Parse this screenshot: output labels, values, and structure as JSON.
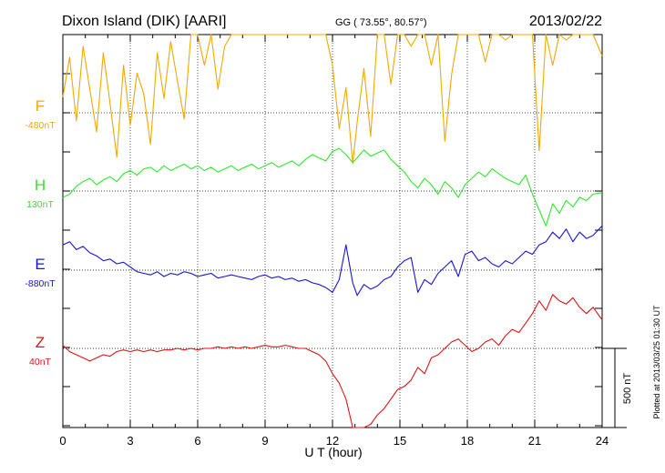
{
  "header": {
    "station": "Dixon Island (DIK)  [AARI]",
    "coords": "GG ( 73.55°,  80.57°)",
    "date": "2013/02/22"
  },
  "side_note": "Plotted at 2013/03/25 01:30 UT",
  "scale_label": "500 nT",
  "chart_data": {
    "type": "line",
    "xlabel": "U T (hour)",
    "xlim": [
      0,
      24
    ],
    "x_ticks": [
      0,
      3,
      6,
      9,
      12,
      15,
      18,
      21,
      24
    ],
    "grid": true,
    "series": [
      {
        "name": "F",
        "baseline_label": "-480nT",
        "color": "#f5a800",
        "baseline_nT": -480,
        "x": [
          0,
          0.3,
          0.6,
          0.9,
          1.2,
          1.5,
          1.8,
          2.1,
          2.4,
          2.7,
          3.0,
          3.3,
          3.6,
          3.9,
          4.2,
          4.5,
          4.8,
          5.1,
          5.4,
          5.7,
          6.0,
          6.3,
          6.6,
          6.9,
          7.2,
          7.5,
          7.8,
          8.1,
          8.4,
          8.7,
          9.0,
          9.3,
          9.6,
          9.9,
          10.2,
          10.5,
          10.8,
          11.1,
          11.4,
          11.7,
          12.0,
          12.3,
          12.6,
          12.9,
          13.1,
          13.4,
          13.7,
          14.0,
          14.3,
          14.6,
          14.9,
          15.2,
          15.5,
          15.8,
          16.1,
          16.4,
          16.7,
          17.0,
          17.3,
          17.6,
          17.9,
          18.2,
          18.5,
          18.8,
          19.1,
          19.4,
          19.7,
          20.0,
          20.3,
          20.6,
          20.9,
          21.2,
          21.5,
          21.8,
          22.1,
          22.4,
          22.7,
          23.0,
          23.3,
          23.6,
          24.0
        ],
        "y": [
          100,
          350,
          -50,
          420,
          150,
          -120,
          380,
          60,
          -280,
          300,
          -80,
          250,
          120,
          -200,
          380,
          90,
          450,
          200,
          -40,
          500,
          640,
          300,
          520,
          150,
          420,
          600,
          780,
          540,
          720,
          860,
          820,
          640,
          900,
          720,
          500,
          860,
          640,
          980,
          760,
          540,
          300,
          -100,
          160,
          -320,
          -60,
          280,
          -150,
          520,
          720,
          180,
          560,
          880,
          420,
          640,
          820,
          300,
          560,
          -180,
          240,
          680,
          960,
          520,
          780,
          320,
          640,
          900,
          460,
          720,
          880,
          540,
          820,
          -240,
          560,
          300,
          780,
          460,
          880,
          620,
          740,
          520,
          360
        ]
      },
      {
        "name": "H",
        "baseline_label": "130nT",
        "color": "#2ee82e",
        "baseline_nT": 130,
        "x": [
          0,
          0.3,
          0.6,
          0.9,
          1.2,
          1.5,
          1.8,
          2.1,
          2.4,
          2.7,
          3.0,
          3.3,
          3.6,
          3.9,
          4.2,
          4.5,
          4.8,
          5.1,
          5.4,
          5.7,
          6.0,
          6.3,
          6.6,
          6.9,
          7.2,
          7.5,
          7.8,
          8.1,
          8.4,
          8.7,
          9.0,
          9.3,
          9.6,
          9.9,
          10.2,
          10.5,
          10.8,
          11.1,
          11.4,
          11.7,
          12.0,
          12.3,
          12.6,
          12.9,
          13.1,
          13.4,
          13.7,
          14.0,
          14.3,
          14.6,
          14.9,
          15.2,
          15.5,
          15.8,
          16.1,
          16.4,
          16.7,
          17.0,
          17.3,
          17.6,
          17.9,
          18.2,
          18.5,
          18.8,
          19.1,
          19.4,
          19.7,
          20.0,
          20.3,
          20.6,
          20.9,
          21.2,
          21.5,
          21.8,
          22.1,
          22.4,
          22.7,
          23.0,
          23.3,
          23.6,
          24.0
        ],
        "y": [
          -40,
          -20,
          30,
          60,
          80,
          40,
          70,
          90,
          60,
          110,
          130,
          100,
          140,
          150,
          120,
          160,
          130,
          150,
          170,
          140,
          160,
          130,
          150,
          120,
          140,
          160,
          130,
          150,
          170,
          140,
          160,
          180,
          150,
          170,
          190,
          160,
          200,
          230,
          210,
          190,
          250,
          270,
          230,
          180,
          210,
          260,
          220,
          240,
          260,
          200,
          160,
          120,
          60,
          20,
          80,
          40,
          -20,
          60,
          20,
          -40,
          40,
          80,
          120,
          90,
          140,
          110,
          80,
          60,
          40,
          100,
          -20,
          -120,
          -220,
          -80,
          -140,
          -60,
          -100,
          -40,
          -60,
          -20,
          -10
        ]
      },
      {
        "name": "E",
        "baseline_label": "-880nT",
        "color": "#1515d8",
        "baseline_nT": -880,
        "x": [
          0,
          0.3,
          0.6,
          0.9,
          1.2,
          1.5,
          1.8,
          2.1,
          2.4,
          2.7,
          3.0,
          3.3,
          3.6,
          3.9,
          4.2,
          4.5,
          4.8,
          5.1,
          5.4,
          5.7,
          6.0,
          6.3,
          6.6,
          6.9,
          7.2,
          7.5,
          7.8,
          8.1,
          8.4,
          8.7,
          9.0,
          9.3,
          9.6,
          9.9,
          10.2,
          10.5,
          10.8,
          11.1,
          11.4,
          11.7,
          12.0,
          12.3,
          12.6,
          12.9,
          13.1,
          13.4,
          13.7,
          14.0,
          14.3,
          14.6,
          14.9,
          15.2,
          15.5,
          15.8,
          16.1,
          16.4,
          16.7,
          17.0,
          17.3,
          17.6,
          17.9,
          18.2,
          18.5,
          18.8,
          19.1,
          19.4,
          19.7,
          20.0,
          20.3,
          20.6,
          20.9,
          21.2,
          21.5,
          21.8,
          22.1,
          22.4,
          22.7,
          23.0,
          23.3,
          23.6,
          24.0
        ],
        "y": [
          160,
          180,
          130,
          150,
          110,
          90,
          60,
          70,
          40,
          50,
          20,
          -10,
          -20,
          -30,
          -10,
          -40,
          -20,
          -30,
          -10,
          -20,
          -40,
          -30,
          -20,
          -50,
          -40,
          -30,
          -40,
          -50,
          -60,
          -40,
          -30,
          -50,
          -40,
          -60,
          -50,
          -70,
          -60,
          -80,
          -90,
          -110,
          -140,
          -60,
          160,
          -80,
          -160,
          -90,
          -120,
          -100,
          -60,
          -40,
          20,
          60,
          80,
          -140,
          -60,
          -90,
          -20,
          20,
          60,
          -40,
          100,
          120,
          60,
          80,
          40,
          20,
          60,
          40,
          80,
          120,
          100,
          160,
          180,
          240,
          200,
          260,
          180,
          240,
          200,
          220,
          280
        ]
      },
      {
        "name": "Z",
        "baseline_label": "40nT",
        "color": "#dd1515",
        "baseline_nT": 40,
        "x": [
          0,
          0.3,
          0.6,
          0.9,
          1.2,
          1.5,
          1.8,
          2.1,
          2.4,
          2.7,
          3.0,
          3.3,
          3.6,
          3.9,
          4.2,
          4.5,
          4.8,
          5.1,
          5.4,
          5.7,
          6.0,
          6.3,
          6.6,
          6.9,
          7.2,
          7.5,
          7.8,
          8.1,
          8.4,
          8.7,
          9.0,
          9.3,
          9.6,
          9.9,
          10.2,
          10.5,
          10.8,
          11.1,
          11.4,
          11.7,
          12.0,
          12.3,
          12.6,
          12.9,
          13.1,
          13.4,
          13.7,
          14.0,
          14.3,
          14.6,
          14.9,
          15.2,
          15.5,
          15.8,
          16.1,
          16.4,
          16.7,
          17.0,
          17.3,
          17.6,
          17.9,
          18.2,
          18.5,
          18.8,
          19.1,
          19.4,
          19.7,
          20.0,
          20.3,
          20.6,
          20.9,
          21.2,
          21.5,
          21.8,
          22.1,
          22.4,
          22.7,
          23.0,
          23.3,
          23.6,
          24.0
        ],
        "y": [
          20,
          -20,
          -40,
          -60,
          -80,
          -60,
          -40,
          -50,
          -20,
          -10,
          -20,
          -10,
          -20,
          -10,
          -20,
          -10,
          -10,
          0,
          -10,
          0,
          -10,
          0,
          0,
          10,
          0,
          10,
          0,
          10,
          0,
          10,
          20,
          10,
          10,
          20,
          10,
          0,
          0,
          -20,
          -40,
          -80,
          -160,
          -220,
          -320,
          -560,
          -650,
          -560,
          -480,
          -420,
          -380,
          -320,
          -260,
          -240,
          -200,
          -120,
          -160,
          -60,
          -40,
          0,
          40,
          60,
          20,
          -20,
          0,
          40,
          60,
          20,
          80,
          120,
          100,
          160,
          220,
          300,
          240,
          340,
          300,
          280,
          320,
          260,
          220,
          260,
          180
        ]
      }
    ]
  }
}
